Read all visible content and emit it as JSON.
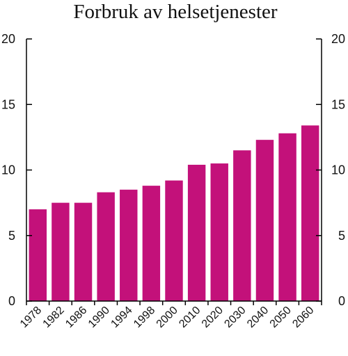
{
  "chart_data": {
    "type": "bar",
    "title": "Forbruk av helsetjenester",
    "xlabel": "",
    "ylabel": "",
    "categories": [
      "1978",
      "1982",
      "1986",
      "1990",
      "1994",
      "1998",
      "2000",
      "2010",
      "2020",
      "2030",
      "2040",
      "2050",
      "2060"
    ],
    "values": [
      7.0,
      7.5,
      7.5,
      8.3,
      8.5,
      8.8,
      9.2,
      10.4,
      10.5,
      11.5,
      12.3,
      12.8,
      13.4
    ],
    "ylim": [
      0,
      20
    ],
    "yticks": [
      "0",
      "5",
      "10",
      "15",
      "20"
    ],
    "secondary_y_axis": true,
    "grid": false,
    "legend": "none",
    "colors": {
      "bar": "#C3117A",
      "axis": "#000000",
      "text": "#111111"
    }
  }
}
